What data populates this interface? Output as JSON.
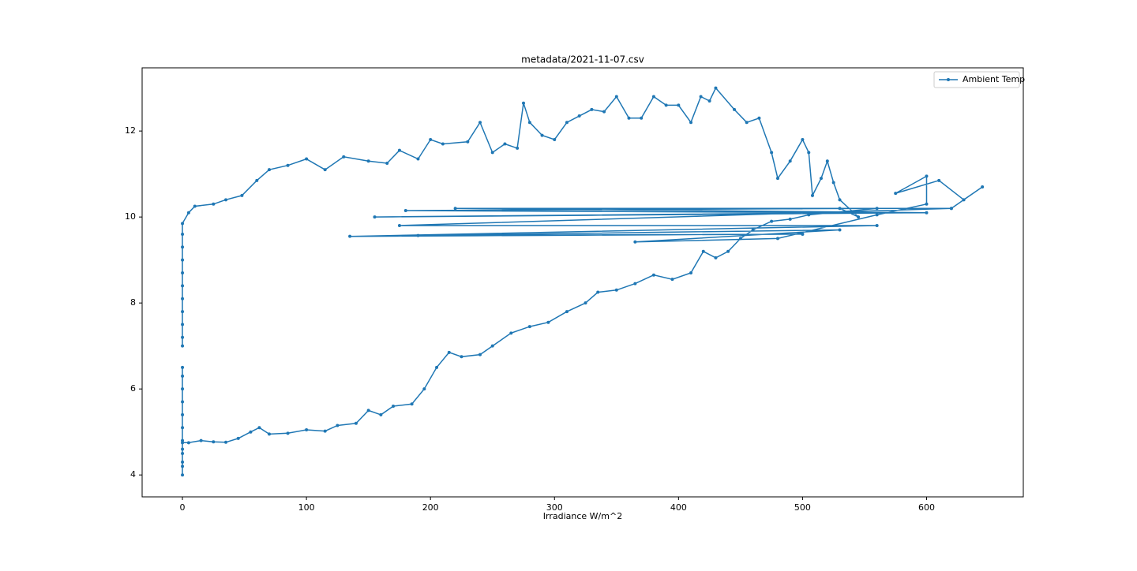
{
  "chart_data": {
    "type": "line",
    "title": "metadata/2021-11-07.csv",
    "x_label": "Irradiance W/m^2",
    "x": [
      0,
      0,
      0,
      0,
      0,
      0,
      0,
      0,
      0,
      0,
      0,
      0,
      0,
      5,
      15,
      25,
      35,
      45,
      55,
      62,
      70,
      85,
      100,
      115,
      125,
      140,
      150,
      160,
      170,
      185,
      195,
      205,
      215,
      225,
      240,
      250,
      265,
      280,
      295,
      310,
      325,
      335,
      350,
      365,
      380,
      395,
      410,
      420,
      430,
      440,
      450,
      460,
      475,
      490,
      505,
      560,
      180,
      540,
      155,
      600,
      220,
      620,
      175,
      560,
      135,
      500,
      190,
      530,
      365,
      480,
      560,
      600,
      600,
      575,
      610,
      630,
      645,
      620,
      530,
      545,
      530,
      525,
      520,
      515,
      508,
      505,
      500,
      490,
      480,
      475,
      465,
      455,
      445,
      430,
      425,
      418,
      410,
      400,
      390,
      380,
      370,
      360,
      350,
      340,
      330,
      320,
      310,
      300,
      290,
      280,
      275,
      270,
      260,
      250,
      240,
      230,
      210,
      200,
      190,
      175,
      165,
      150,
      130,
      115,
      100,
      85,
      70,
      60,
      48,
      35,
      25,
      10,
      5,
      0,
      0,
      0,
      0,
      0,
      0,
      0,
      0,
      0,
      0,
      0
    ],
    "series": [
      {
        "name": "Ambient Temp",
        "color": "#1f77b4",
        "values": [
          6.5,
          6.3,
          6.0,
          5.7,
          5.4,
          5.1,
          4.8,
          4.5,
          4.2,
          4.0,
          4.3,
          4.6,
          4.75,
          4.75,
          4.8,
          4.77,
          4.76,
          4.85,
          5.0,
          5.1,
          4.95,
          4.97,
          5.05,
          5.02,
          5.15,
          5.2,
          5.5,
          5.4,
          5.6,
          5.65,
          6.0,
          6.5,
          6.85,
          6.75,
          6.8,
          7.0,
          7.3,
          7.45,
          7.55,
          7.8,
          8.0,
          8.25,
          8.3,
          8.45,
          8.65,
          8.55,
          8.7,
          9.2,
          9.05,
          9.2,
          9.5,
          9.7,
          9.9,
          9.95,
          10.05,
          10.2,
          10.15,
          10.1,
          10.0,
          10.1,
          10.2,
          10.2,
          9.8,
          9.8,
          9.55,
          9.6,
          9.57,
          9.7,
          9.42,
          9.5,
          10.05,
          10.3,
          10.95,
          10.55,
          10.85,
          10.4,
          10.7,
          10.2,
          10.2,
          10.0,
          10.4,
          10.8,
          11.3,
          10.9,
          10.5,
          11.5,
          11.8,
          11.3,
          10.9,
          11.5,
          12.3,
          12.2,
          12.5,
          13.0,
          12.7,
          12.8,
          12.2,
          12.6,
          12.6,
          12.8,
          12.3,
          12.3,
          12.8,
          12.45,
          12.5,
          12.35,
          12.2,
          11.8,
          11.9,
          12.2,
          12.65,
          11.6,
          11.7,
          11.5,
          12.2,
          11.75,
          11.7,
          11.8,
          11.35,
          11.55,
          11.25,
          11.3,
          11.4,
          11.1,
          11.35,
          11.2,
          11.1,
          10.85,
          10.5,
          10.4,
          10.3,
          10.25,
          10.1,
          9.85,
          9.6,
          9.3,
          9.0,
          8.7,
          8.4,
          8.1,
          7.8,
          7.5,
          7.2,
          7.0
        ]
      }
    ],
    "xlim": [
      -32.5,
      678
    ],
    "ylim": [
      3.49,
      13.47
    ],
    "xticks": [
      0,
      100,
      200,
      300,
      400,
      500,
      600
    ],
    "yticks": [
      4,
      6,
      8,
      10,
      12
    ],
    "grid": false,
    "legend": "upper right"
  }
}
